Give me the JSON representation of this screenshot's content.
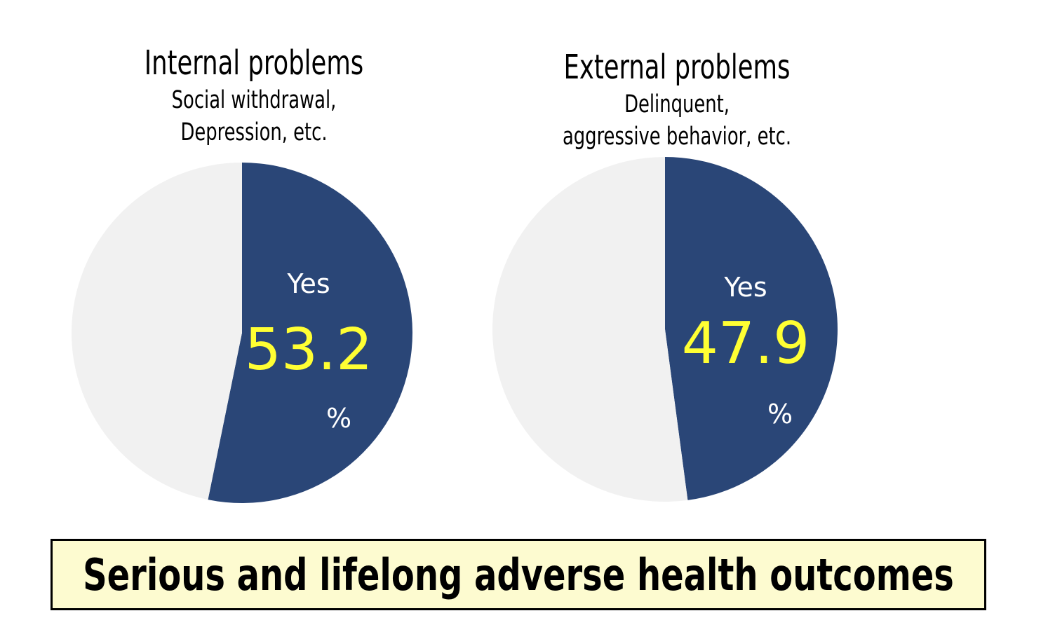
{
  "colors": {
    "yes": "#2a4677",
    "remainder": "#f1f1f1",
    "value_text": "#ffff33",
    "label_text": "#ffffff",
    "banner_bg": "#fdfbd0"
  },
  "chart_data": [
    {
      "type": "pie",
      "title": "Internal problems",
      "subtitle": "Social withdrawal,\nDepression, etc.",
      "slices": [
        {
          "label": "Yes",
          "value": 53.2
        },
        {
          "label": "",
          "value": 46.8
        }
      ],
      "value_label": "53.2",
      "unit": "%",
      "start": "12 o'clock",
      "direction": "clockwise"
    },
    {
      "type": "pie",
      "title": "External problems",
      "subtitle": "Delinquent,\naggressive behavior, etc.",
      "slices": [
        {
          "label": "Yes",
          "value": 47.9
        },
        {
          "label": "",
          "value": 52.1
        }
      ],
      "value_label": "47.9",
      "unit": "%",
      "start": "12 o'clock",
      "direction": "clockwise"
    }
  ],
  "banner": {
    "text": "Serious and lifelong adverse health outcomes"
  }
}
